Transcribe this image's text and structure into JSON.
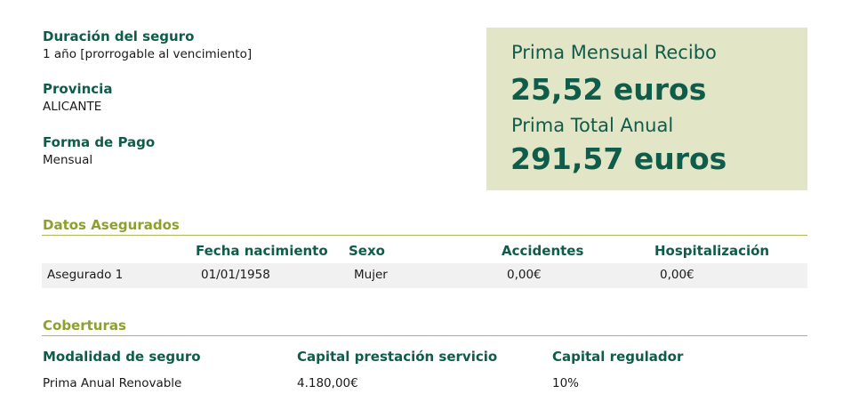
{
  "summary": {
    "duration_label": "Duración del seguro",
    "duration_value": "1 año [prorrogable al vencimiento]",
    "province_label": "Provincia",
    "province_value": "ALICANTE",
    "payment_label": "Forma de Pago",
    "payment_value": "Mensual"
  },
  "premium": {
    "monthly_label": "Prima Mensual Recibo",
    "monthly_value": "25,52 euros",
    "annual_label": "Prima Total Anual",
    "annual_value": "291,57 euros"
  },
  "insured": {
    "title": "Datos Asegurados",
    "headers": [
      "",
      "Fecha nacimiento",
      "Sexo",
      "Accidentes",
      "Hospitalización"
    ],
    "rows": [
      [
        "Asegurado 1",
        "01/01/1958",
        "Mujer",
        "0,00€",
        "0,00€"
      ]
    ]
  },
  "coverages": {
    "title": "Coberturas",
    "headers": [
      "Modalidad de seguro",
      "Capital prestación servicio",
      "Capital regulador"
    ],
    "rows": [
      [
        "Prima Anual Renovable",
        "4.180,00€",
        "10%"
      ]
    ]
  },
  "colors": {
    "dark_green": "#0f5c4a",
    "olive": "#8ba12a",
    "box_bg": "#e2e6c7"
  }
}
